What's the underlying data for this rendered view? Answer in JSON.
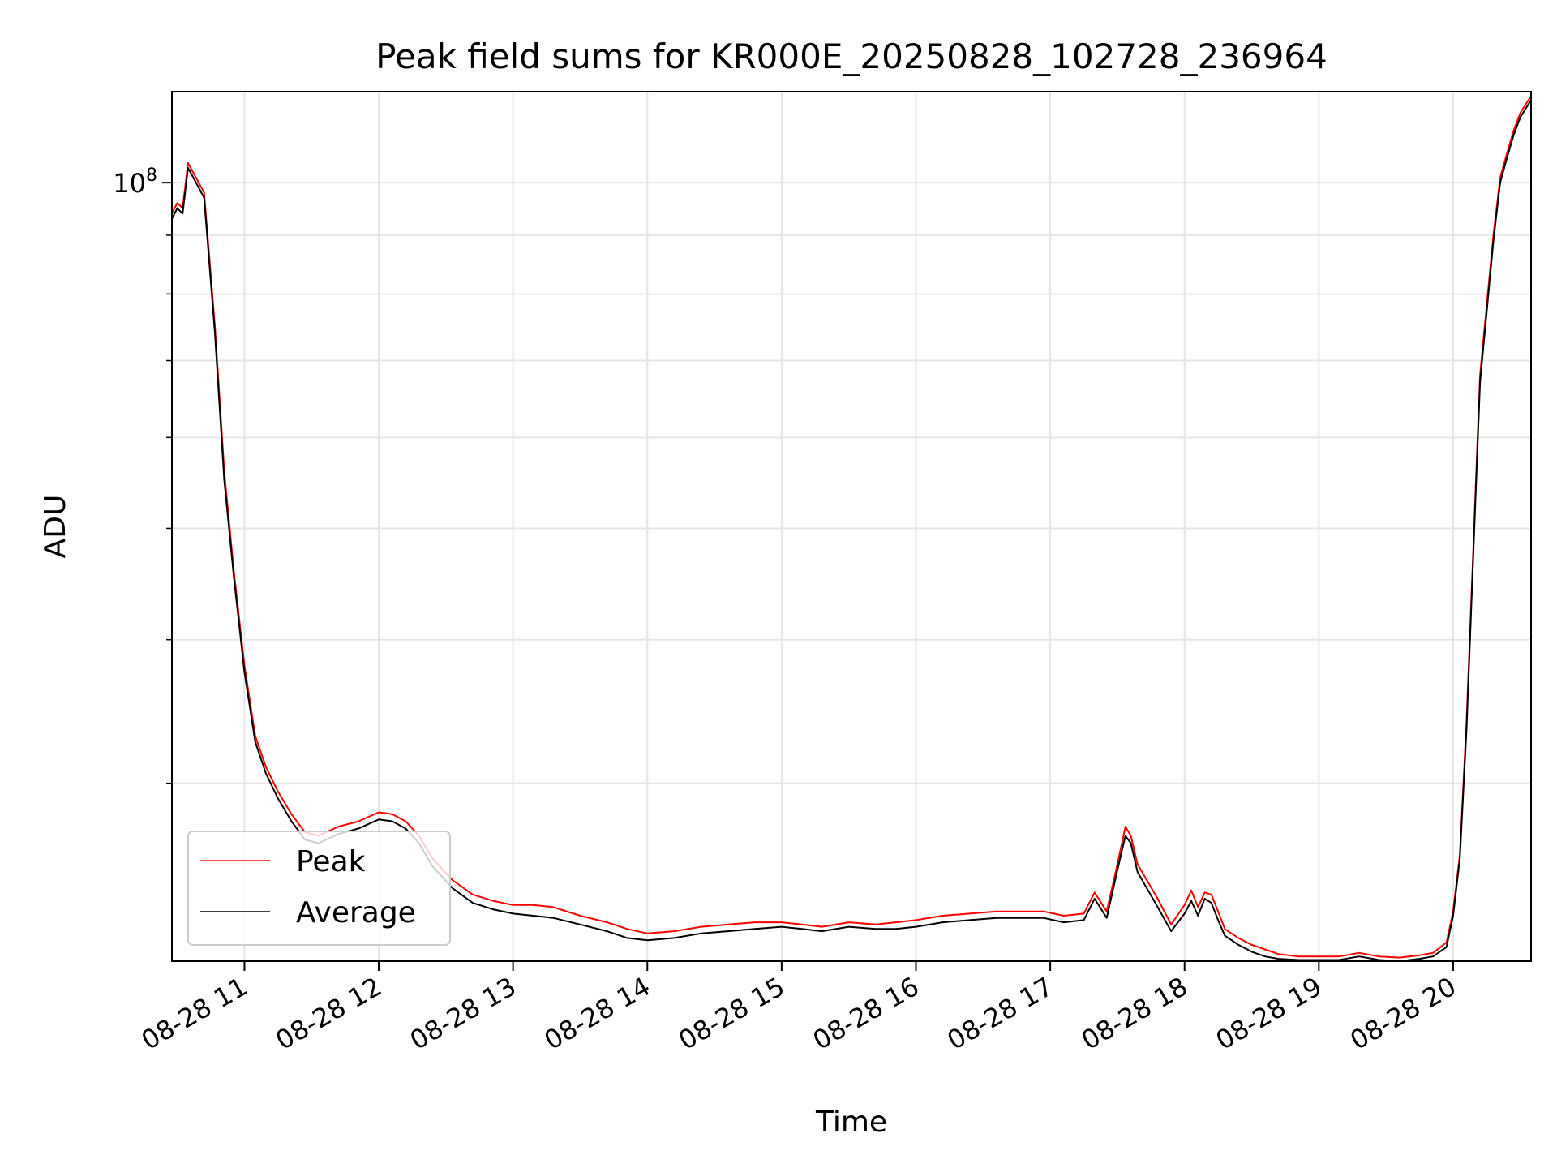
{
  "chart_data": {
    "type": "line",
    "title": "Peak field sums for KR000E_20250828_102728_236964",
    "xlabel": "Time",
    "ylabel": "ADU",
    "y_scale": "log",
    "ylim": [
      21000000,
      120000000
    ],
    "x_range_hours": [
      10.46,
      20.58
    ],
    "x_ticks": [
      {
        "hour": 11,
        "label": "08-28 11"
      },
      {
        "hour": 12,
        "label": "08-28 12"
      },
      {
        "hour": 13,
        "label": "08-28 13"
      },
      {
        "hour": 14,
        "label": "08-28 14"
      },
      {
        "hour": 15,
        "label": "08-28 15"
      },
      {
        "hour": 16,
        "label": "08-28 16"
      },
      {
        "hour": 17,
        "label": "08-28 17"
      },
      {
        "hour": 18,
        "label": "08-28 18"
      },
      {
        "hour": 19,
        "label": "08-28 19"
      },
      {
        "hour": 20,
        "label": "08-28 20"
      }
    ],
    "y_major_ticks": [
      {
        "value": 100000000,
        "base": "10",
        "exp": "8"
      }
    ],
    "y_minor_ticks": [
      30000000,
      40000000,
      50000000,
      60000000,
      70000000,
      80000000,
      90000000
    ],
    "grid": true,
    "legend_position": "lower-left",
    "series": [
      {
        "name": "Peak",
        "color": "#ff0000",
        "x_hours": [
          10.46,
          10.5,
          10.54,
          10.58,
          10.62,
          10.7,
          10.78,
          10.85,
          10.92,
          11.0,
          11.08,
          11.16,
          11.25,
          11.35,
          11.45,
          11.55,
          11.7,
          11.85,
          12.0,
          12.1,
          12.2,
          12.3,
          12.4,
          12.55,
          12.7,
          12.85,
          13.0,
          13.15,
          13.3,
          13.5,
          13.7,
          13.85,
          14.0,
          14.2,
          14.4,
          14.6,
          14.8,
          15.0,
          15.15,
          15.3,
          15.5,
          15.7,
          15.85,
          16.0,
          16.2,
          16.4,
          16.6,
          16.8,
          16.95,
          17.1,
          17.25,
          17.33,
          17.42,
          17.5,
          17.56,
          17.6,
          17.65,
          17.72,
          17.8,
          17.9,
          18.0,
          18.05,
          18.1,
          18.15,
          18.2,
          18.25,
          18.3,
          18.4,
          18.5,
          18.6,
          18.7,
          18.85,
          19.0,
          19.15,
          19.3,
          19.45,
          19.6,
          19.75,
          19.85,
          19.95,
          20.0,
          20.05,
          20.1,
          20.15,
          20.2,
          20.3,
          20.35,
          20.4,
          20.45,
          20.5,
          20.58
        ],
        "y": [
          94000000,
          96000000,
          95000000,
          104000000,
          102000000,
          98000000,
          75000000,
          56000000,
          46000000,
          38000000,
          33000000,
          31000000,
          29500000,
          28200000,
          27200000,
          27000000,
          27500000,
          27800000,
          28300000,
          28200000,
          27800000,
          27000000,
          25800000,
          24700000,
          24000000,
          23700000,
          23500000,
          23500000,
          23400000,
          23000000,
          22700000,
          22400000,
          22200000,
          22300000,
          22500000,
          22600000,
          22700000,
          22700000,
          22600000,
          22500000,
          22700000,
          22600000,
          22700000,
          22800000,
          23000000,
          23100000,
          23200000,
          23200000,
          23200000,
          23000000,
          23100000,
          24100000,
          23200000,
          25500000,
          27500000,
          27000000,
          25500000,
          24700000,
          23800000,
          22600000,
          23500000,
          24200000,
          23400000,
          24100000,
          24000000,
          23200000,
          22400000,
          22000000,
          21700000,
          21500000,
          21300000,
          21200000,
          21200000,
          21200000,
          21350000,
          21200000,
          21150000,
          21250000,
          21350000,
          21800000,
          23200000,
          26000000,
          34000000,
          48000000,
          68000000,
          90000000,
          101000000,
          106000000,
          111000000,
          115000000,
          119000000
        ]
      },
      {
        "name": "Average",
        "color": "#000000",
        "x_hours": [
          10.46,
          10.5,
          10.54,
          10.58,
          10.62,
          10.7,
          10.78,
          10.85,
          10.92,
          11.0,
          11.08,
          11.16,
          11.25,
          11.35,
          11.45,
          11.55,
          11.7,
          11.85,
          12.0,
          12.1,
          12.2,
          12.3,
          12.4,
          12.55,
          12.7,
          12.85,
          13.0,
          13.15,
          13.3,
          13.5,
          13.7,
          13.85,
          14.0,
          14.2,
          14.4,
          14.6,
          14.8,
          15.0,
          15.15,
          15.3,
          15.5,
          15.7,
          15.85,
          16.0,
          16.2,
          16.4,
          16.6,
          16.8,
          16.95,
          17.1,
          17.25,
          17.33,
          17.42,
          17.5,
          17.56,
          17.6,
          17.65,
          17.72,
          17.8,
          17.9,
          18.0,
          18.05,
          18.1,
          18.15,
          18.2,
          18.25,
          18.3,
          18.4,
          18.5,
          18.6,
          18.7,
          18.85,
          19.0,
          19.15,
          19.3,
          19.45,
          19.6,
          19.75,
          19.85,
          19.95,
          20.0,
          20.05,
          20.1,
          20.15,
          20.2,
          20.3,
          20.35,
          20.4,
          20.45,
          20.5,
          20.58
        ],
        "y": [
          93000000,
          95000000,
          94000000,
          103000000,
          101000000,
          97000000,
          74000000,
          55000000,
          45500000,
          37500000,
          32600000,
          30600000,
          29100000,
          27800000,
          26800000,
          26600000,
          27100000,
          27400000,
          27900000,
          27800000,
          27400000,
          26600000,
          25400000,
          24300000,
          23600000,
          23300000,
          23100000,
          23000000,
          22900000,
          22600000,
          22300000,
          22000000,
          21900000,
          22000000,
          22200000,
          22300000,
          22400000,
          22500000,
          22400000,
          22300000,
          22500000,
          22400000,
          22400000,
          22500000,
          22700000,
          22800000,
          22900000,
          22900000,
          22900000,
          22700000,
          22800000,
          23800000,
          22900000,
          25200000,
          27000000,
          26600000,
          25100000,
          24300000,
          23400000,
          22300000,
          23100000,
          23700000,
          23000000,
          23800000,
          23600000,
          22800000,
          22100000,
          21700000,
          21400000,
          21200000,
          21100000,
          21050000,
          21050000,
          21050000,
          21200000,
          21050000,
          21000000,
          21100000,
          21200000,
          21600000,
          23000000,
          25800000,
          33500000,
          47500000,
          67000000,
          89000000,
          100000000,
          105000000,
          110000000,
          114000000,
          118000000
        ]
      }
    ]
  }
}
